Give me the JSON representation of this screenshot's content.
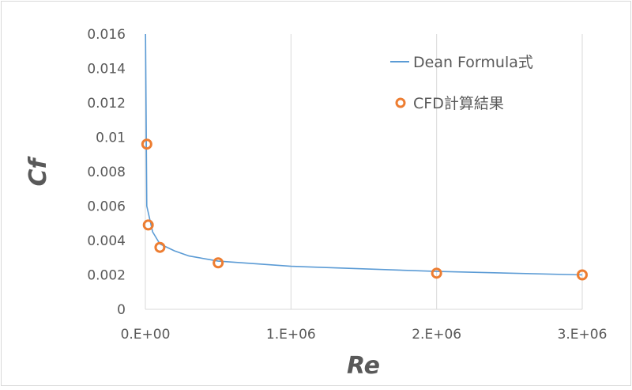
{
  "chart_data": {
    "type": "scatter",
    "title": "",
    "xlabel": "Re",
    "ylabel": "Cf",
    "xlim": [
      0,
      3000000
    ],
    "ylim": [
      0,
      0.016
    ],
    "x_ticks": [
      0,
      1000000,
      2000000,
      3000000
    ],
    "x_tick_labels": [
      "0.E+00",
      "1.E+06",
      "2.E+06",
      "3.E+06"
    ],
    "y_ticks": [
      0,
      0.002,
      0.004,
      0.006,
      0.008,
      0.01,
      0.012,
      0.014,
      0.016
    ],
    "y_tick_labels": [
      "0",
      "0.002",
      "0.004",
      "0.006",
      "0.008",
      "0.01",
      "0.012",
      "0.014",
      "0.016"
    ],
    "grid": "vertical",
    "legend_position": "top-right",
    "colors": {
      "line": "#5B9BD5",
      "marker": "#ED7D31",
      "grid": "#D9D9D9",
      "text": "#595959"
    },
    "series": [
      {
        "name": "Dean Formula式",
        "type": "line",
        "x": [
          1000,
          10000,
          50000,
          100000,
          200000,
          300000,
          500000,
          1000000,
          2000000,
          3000000
        ],
        "y": [
          0.016,
          0.006,
          0.0045,
          0.0038,
          0.0034,
          0.0031,
          0.0028,
          0.0025,
          0.0022,
          0.002
        ]
      },
      {
        "name": "CFD計算結果",
        "type": "scatter",
        "x": [
          10000,
          20000,
          100000,
          500000,
          2000000,
          3000000
        ],
        "y": [
          0.0096,
          0.0049,
          0.0036,
          0.0027,
          0.0021,
          0.002
        ]
      }
    ]
  }
}
